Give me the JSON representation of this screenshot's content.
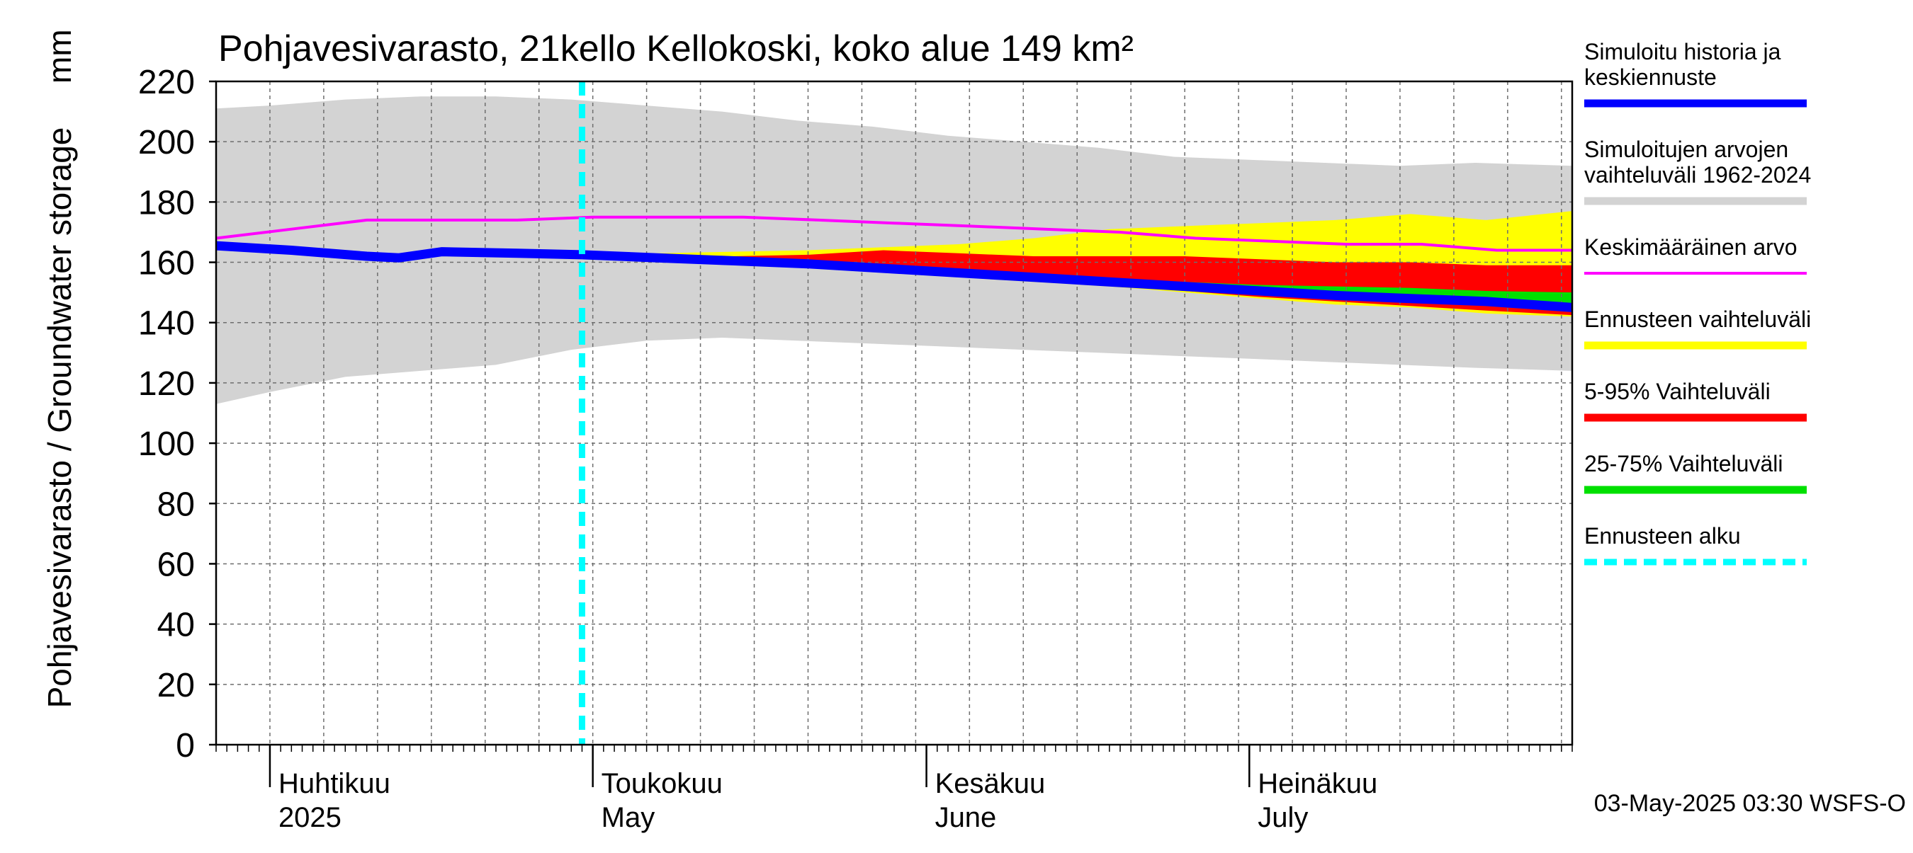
{
  "chart_data": {
    "type": "area",
    "title": "Pohjavesivarasto, 21kello Kellokoski, koko alue 149 km²",
    "ylabel": "Pohjavesivarasto / Groundwater storage",
    "yunit": "mm",
    "ylim": [
      0,
      220
    ],
    "yticks": [
      0,
      20,
      40,
      60,
      80,
      100,
      120,
      140,
      160,
      180,
      200,
      220
    ],
    "grid": true,
    "xrange": [
      "2025-03-27",
      "2025-07-31"
    ],
    "month_labels": [
      {
        "date": "2025-04-01",
        "fi": "Huhtikuu",
        "en": "2025"
      },
      {
        "date": "2025-05-01",
        "fi": "Toukokuu",
        "en": "May"
      },
      {
        "date": "2025-06-01",
        "fi": "Kesäkuu",
        "en": "June"
      },
      {
        "date": "2025-07-01",
        "fi": "Heinäkuu",
        "en": "July"
      }
    ],
    "forecast_start": "2025-04-30",
    "footer": "03-May-2025 03:30 WSFS-O",
    "colors": {
      "history": "#0000ff",
      "range_1962_2024": "#d3d3d3",
      "mean": "#ff00ff",
      "forecast_range": "#ffff00",
      "p5_95": "#ff0000",
      "p25_75": "#00e000",
      "forecast_start": "#00ffff"
    },
    "legend": [
      {
        "key": "history",
        "label": "Simuloitu historia ja keskiennuste",
        "style": "thick"
      },
      {
        "key": "range_1962_2024",
        "label": "Simuloitujen arvojen vaihteluväli 1962-2024",
        "style": "thick"
      },
      {
        "key": "mean",
        "label": "Keskimääräinen arvo",
        "style": "thin"
      },
      {
        "key": "forecast_range",
        "label": "Ennusteen vaihteluväli",
        "style": "thick"
      },
      {
        "key": "p5_95",
        "label": "5-95% Vaihteluväli",
        "style": "thick"
      },
      {
        "key": "p25_75",
        "label": "25-75% Vaihteluväli",
        "style": "thick"
      },
      {
        "key": "forecast_start",
        "label": "Ennusteen alku",
        "style": "dashed"
      }
    ],
    "series": {
      "range_1962_2024": {
        "dates": [
          "2025-03-27",
          "2025-04-01",
          "2025-04-08",
          "2025-04-15",
          "2025-04-22",
          "2025-04-29",
          "2025-05-06",
          "2025-05-13",
          "2025-05-20",
          "2025-05-27",
          "2025-06-03",
          "2025-06-10",
          "2025-06-17",
          "2025-06-24",
          "2025-07-01",
          "2025-07-08",
          "2025-07-15",
          "2025-07-22",
          "2025-07-31"
        ],
        "upper": [
          211,
          212,
          214,
          215,
          215,
          214,
          212,
          210,
          207,
          205,
          202,
          200,
          198,
          195,
          194,
          193,
          192,
          193,
          192
        ],
        "lower": [
          113,
          117,
          122,
          124,
          126,
          131,
          134,
          135,
          134,
          133,
          132,
          131,
          130,
          129,
          128,
          127,
          126,
          125,
          124
        ]
      },
      "mean": {
        "dates": [
          "2025-03-27",
          "2025-04-03",
          "2025-04-10",
          "2025-04-17",
          "2025-04-24",
          "2025-05-01",
          "2025-05-08",
          "2025-05-15",
          "2025-05-22",
          "2025-05-29",
          "2025-06-05",
          "2025-06-12",
          "2025-06-19",
          "2025-06-26",
          "2025-07-03",
          "2025-07-10",
          "2025-07-17",
          "2025-07-24",
          "2025-07-31"
        ],
        "values": [
          168,
          171,
          174,
          174,
          174,
          175,
          175,
          175,
          174,
          173,
          172,
          171,
          170,
          168,
          167,
          166,
          166,
          164,
          164
        ]
      },
      "history": {
        "dates": [
          "2025-03-27",
          "2025-04-03",
          "2025-04-10",
          "2025-04-13",
          "2025-04-17",
          "2025-04-24",
          "2025-04-30"
        ],
        "values": [
          165.5,
          164,
          162,
          161.5,
          163.5,
          163,
          162.5
        ]
      },
      "median_forecast": {
        "dates": [
          "2025-04-30",
          "2025-05-07",
          "2025-05-14",
          "2025-05-21",
          "2025-05-28",
          "2025-06-04",
          "2025-06-11",
          "2025-06-18",
          "2025-06-25",
          "2025-07-02",
          "2025-07-09",
          "2025-07-16",
          "2025-07-23",
          "2025-07-31"
        ],
        "values": [
          162.5,
          161.5,
          160.5,
          159.5,
          158,
          156.5,
          155,
          153.5,
          152,
          150.5,
          149,
          148,
          147,
          145
        ]
      },
      "forecast_range": {
        "dates": [
          "2025-04-30",
          "2025-05-07",
          "2025-05-14",
          "2025-05-21",
          "2025-05-28",
          "2025-06-04",
          "2025-06-11",
          "2025-06-18",
          "2025-06-25",
          "2025-07-02",
          "2025-07-09",
          "2025-07-16",
          "2025-07-23",
          "2025-07-31"
        ],
        "upper": [
          162.5,
          163,
          163.5,
          164,
          165,
          166,
          168,
          171,
          172,
          173,
          174,
          176,
          174,
          177
        ],
        "lower": [
          162.5,
          161,
          160,
          158.5,
          157,
          155,
          153.5,
          152,
          150,
          148,
          146,
          145,
          143,
          142
        ]
      },
      "p5_95": {
        "dates": [
          "2025-04-30",
          "2025-05-07",
          "2025-05-14",
          "2025-05-21",
          "2025-05-28",
          "2025-06-04",
          "2025-06-11",
          "2025-06-18",
          "2025-06-25",
          "2025-07-02",
          "2025-07-09",
          "2025-07-16",
          "2025-07-23",
          "2025-07-31"
        ],
        "upper": [
          162.5,
          162,
          162,
          162.5,
          164,
          163,
          162,
          162,
          162,
          161,
          160,
          160,
          159,
          159
        ],
        "lower": [
          162.5,
          161,
          160,
          159,
          157.5,
          155.5,
          154,
          152.5,
          150.5,
          148.5,
          147,
          145.5,
          144,
          142.5
        ]
      },
      "p25_75": {
        "dates": [
          "2025-04-30",
          "2025-05-07",
          "2025-05-14",
          "2025-05-21",
          "2025-05-28",
          "2025-06-04",
          "2025-06-11",
          "2025-06-18",
          "2025-06-25",
          "2025-07-02",
          "2025-07-09",
          "2025-07-16",
          "2025-07-23",
          "2025-07-31"
        ],
        "upper": [
          162.5,
          162,
          161,
          160,
          158.5,
          157,
          155.5,
          154.5,
          153.5,
          152.5,
          152,
          151.5,
          150.5,
          150
        ],
        "lower": [
          162.5,
          161,
          160,
          159,
          157.5,
          156,
          154.5,
          153,
          151.5,
          150,
          148.5,
          147,
          145.5,
          143.5
        ]
      }
    }
  }
}
